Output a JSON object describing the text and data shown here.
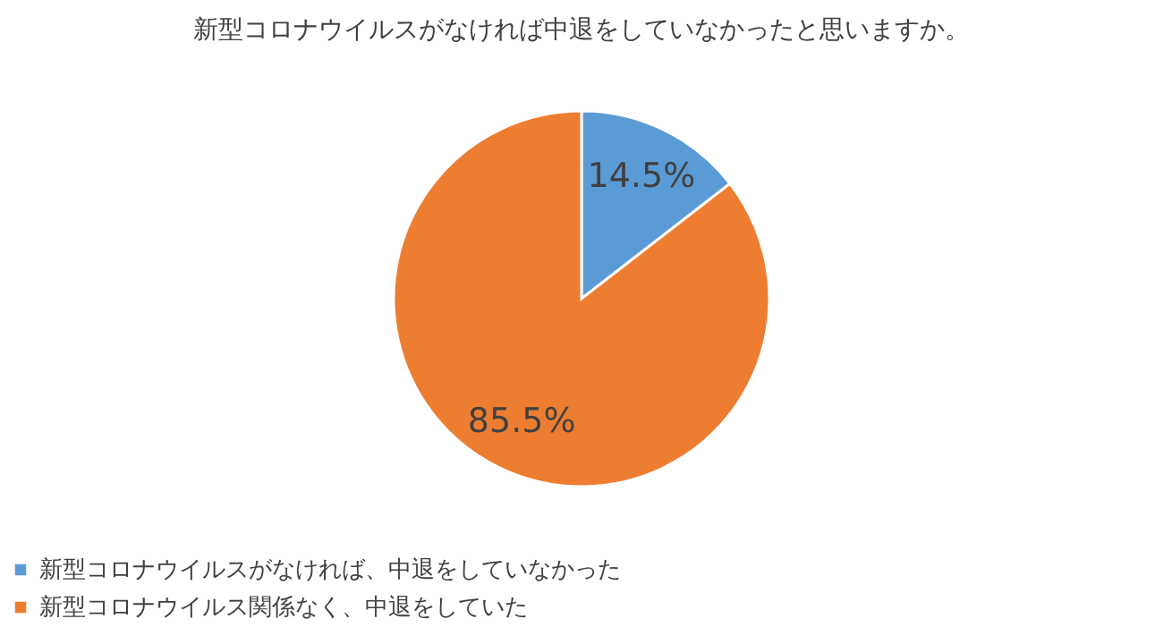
{
  "chart_data": {
    "type": "pie",
    "title": "新型コロナウイルスがなければ中退をしていなかったと思いますか。",
    "categories": [
      "新型コロナウイルスがなければ、中退をしていなかった",
      "新型コロナウイルス関係なく、中退をしていた"
    ],
    "values": [
      14.5,
      85.5
    ],
    "colors": [
      "#5b9bd5",
      "#ed7d31"
    ],
    "value_labels": [
      "14.5%",
      "85.5%"
    ],
    "legend": "bottom"
  }
}
